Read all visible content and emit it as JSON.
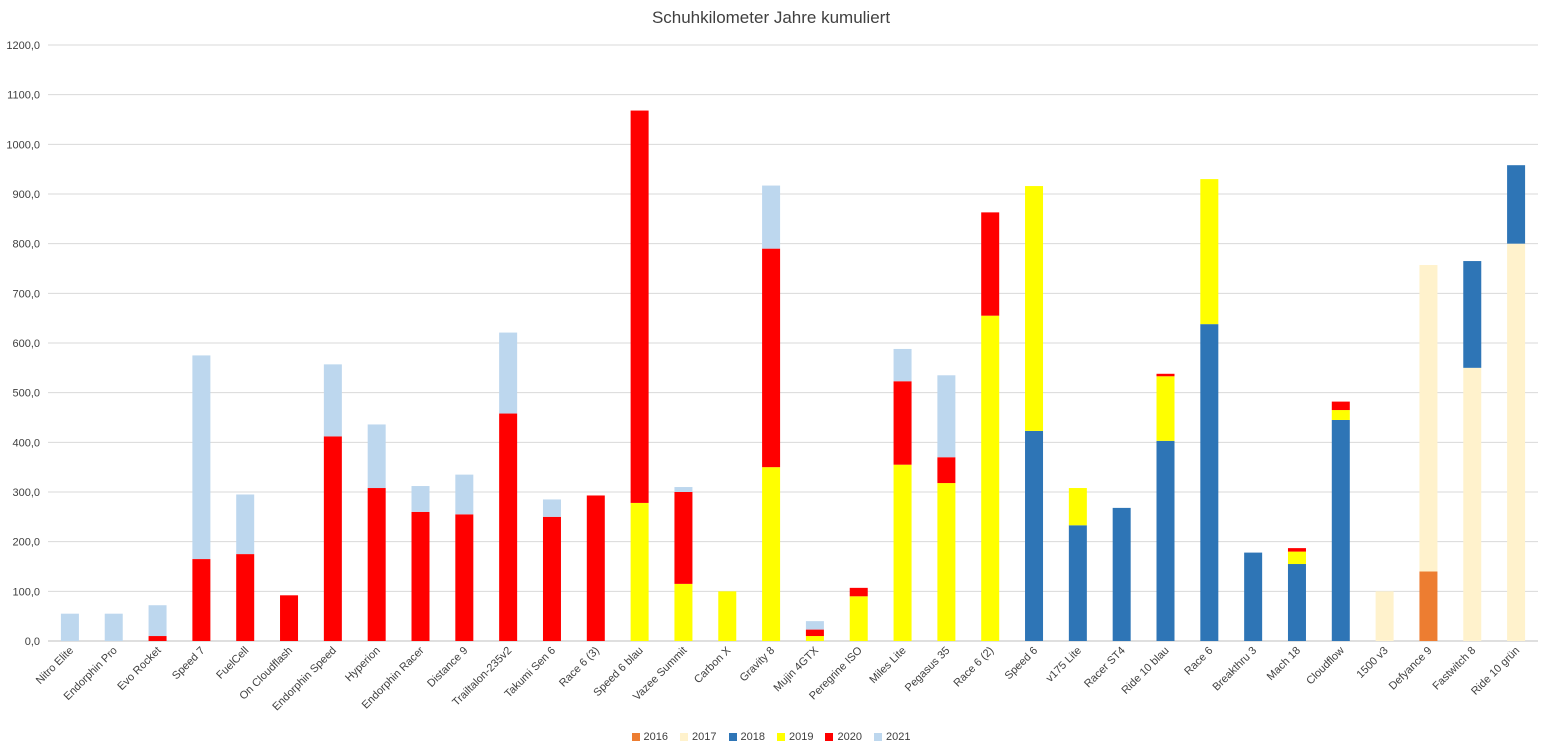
{
  "chart_data": {
    "type": "bar",
    "stacked": true,
    "title": "Schuhkilometer Jahre kumuliert",
    "ylim": [
      0,
      1200
    ],
    "y_ticks": [
      "0,0",
      "100,0",
      "200,0",
      "300,0",
      "400,0",
      "500,0",
      "600,0",
      "700,0",
      "800,0",
      "900,0",
      "1000,0",
      "1100,0",
      "1200,0"
    ],
    "grid": true,
    "legend_position": "bottom",
    "categories": [
      "Nitro Elite",
      "Endorphin Pro",
      "Evo Rocket",
      "Speed 7",
      "FuelCell",
      "On Cloudflash",
      "Endorphin Speed",
      "Hyperion",
      "Endorphin Racer",
      "Distance 9",
      "Trailtalon-235v2",
      "Takumi Sen 6",
      "Race 6 (3)",
      "Speed 6 blau",
      "Vazee Summit",
      "Carbon X",
      "Gravity 8",
      "Mujin 4GTX",
      "Peregrine ISO",
      "Miles Lite",
      "Pegasus 35",
      "Race 6 (2)",
      "Speed 6",
      "v175 Lite",
      "Racer ST4",
      "Ride 10 blau",
      "Race 6",
      "Breakthru 3",
      "Mach 18",
      "Cloudflow",
      "1500 v3",
      "Defyance 9",
      "Fastwitch 8",
      "Ride 10 grün"
    ],
    "series": [
      {
        "name": "2016",
        "color": "#ED7D31",
        "values": [
          0,
          0,
          0,
          0,
          0,
          0,
          0,
          0,
          0,
          0,
          0,
          0,
          0,
          0,
          0,
          0,
          0,
          0,
          0,
          0,
          0,
          0,
          0,
          0,
          0,
          0,
          0,
          0,
          0,
          0,
          0,
          140,
          0,
          0
        ]
      },
      {
        "name": "2017",
        "color": "#FFF2CC",
        "values": [
          0,
          0,
          0,
          0,
          0,
          0,
          0,
          0,
          0,
          0,
          0,
          0,
          0,
          0,
          0,
          0,
          0,
          0,
          0,
          0,
          0,
          0,
          0,
          0,
          0,
          0,
          0,
          0,
          0,
          0,
          100,
          617,
          550,
          800
        ]
      },
      {
        "name": "2018",
        "color": "#2E75B6",
        "values": [
          0,
          0,
          0,
          0,
          0,
          0,
          0,
          0,
          0,
          0,
          0,
          0,
          0,
          0,
          0,
          0,
          0,
          0,
          0,
          0,
          0,
          0,
          423,
          233,
          268,
          403,
          638,
          178,
          155,
          445,
          0,
          0,
          215,
          158
        ]
      },
      {
        "name": "2019",
        "color": "#FFFF00",
        "values": [
          0,
          0,
          0,
          0,
          0,
          0,
          0,
          0,
          0,
          0,
          0,
          0,
          0,
          278,
          115,
          100,
          350,
          10,
          90,
          355,
          318,
          655,
          493,
          75,
          0,
          130,
          292,
          0,
          25,
          20,
          0,
          0,
          0,
          0
        ]
      },
      {
        "name": "2020",
        "color": "#FF0000",
        "values": [
          0,
          0,
          10,
          165,
          175,
          92,
          412,
          308,
          260,
          255,
          458,
          250,
          293,
          790,
          185,
          0,
          440,
          13,
          17,
          168,
          52,
          208,
          0,
          0,
          0,
          5,
          0,
          0,
          7,
          17,
          0,
          0,
          0,
          0
        ]
      },
      {
        "name": "2021",
        "color": "#BDD7EE",
        "values": [
          55,
          55,
          62,
          410,
          120,
          0,
          145,
          128,
          52,
          80,
          163,
          35,
          0,
          0,
          10,
          0,
          127,
          17,
          0,
          65,
          165,
          0,
          0,
          0,
          0,
          0,
          0,
          0,
          0,
          0,
          0,
          0,
          0,
          0
        ]
      }
    ]
  }
}
